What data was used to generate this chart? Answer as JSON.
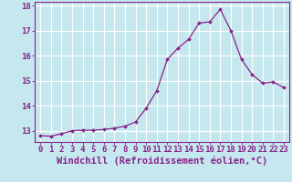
{
  "x": [
    0,
    1,
    2,
    3,
    4,
    5,
    6,
    7,
    8,
    9,
    10,
    11,
    12,
    13,
    14,
    15,
    16,
    17,
    18,
    19,
    20,
    21,
    22,
    23
  ],
  "y": [
    12.8,
    12.78,
    12.88,
    13.0,
    13.02,
    13.02,
    13.05,
    13.1,
    13.18,
    13.35,
    13.9,
    14.6,
    15.85,
    16.3,
    16.65,
    17.3,
    17.35,
    17.85,
    17.0,
    15.85,
    15.25,
    14.9,
    14.95,
    14.72
  ],
  "line_color": "#882288",
  "marker": "D",
  "marker_size": 2.0,
  "bg_color": "#c5e8ef",
  "grid_color": "#ffffff",
  "xlabel": "Windchill (Refroidissement éolien,°C)",
  "ylabel_ticks": [
    13,
    14,
    15,
    16,
    17,
    18
  ],
  "xlim": [
    -0.5,
    23.5
  ],
  "ylim": [
    12.55,
    18.15
  ],
  "tick_color": "#882288",
  "label_color": "#882288",
  "font_size": 6.5,
  "xlabel_font_size": 7.5
}
